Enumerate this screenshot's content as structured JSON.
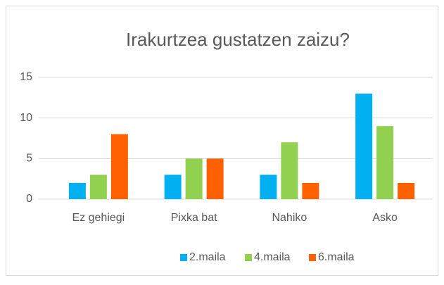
{
  "chart_data": {
    "type": "bar",
    "title": "Irakurtzea gustatzen zaizu?",
    "categories": [
      "Ez gehiegi",
      "Pixka bat",
      "Nahiko",
      "Asko"
    ],
    "series": [
      {
        "name": "2.maila",
        "color": "#00b0f0",
        "values": [
          2,
          3,
          3,
          13
        ]
      },
      {
        "name": "4.maila",
        "color": "#92d050",
        "values": [
          3,
          5,
          7,
          9
        ]
      },
      {
        "name": "6.maila",
        "color": "#ff6000",
        "values": [
          8,
          5,
          2,
          2
        ]
      }
    ],
    "ylim": [
      0,
      15
    ],
    "yticks": [
      0,
      5,
      10,
      15
    ],
    "grid": true,
    "legend": "bottom"
  }
}
